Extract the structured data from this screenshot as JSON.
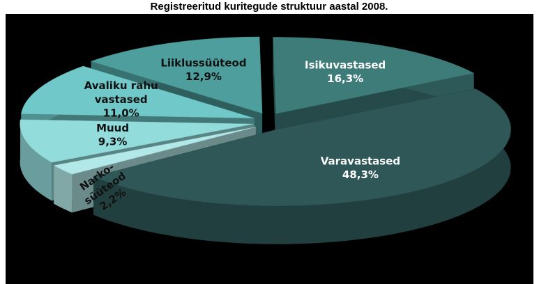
{
  "chart_data": {
    "type": "pie",
    "title": "Registreeritud kuritegude struktuur aastal 2008.",
    "categories": [
      "Varavastased",
      "Narko-süüteod",
      "Muud",
      "Avaliku rahu vastased",
      "Liiklussüüteod",
      "Isikuvastased"
    ],
    "values": [
      48.3,
      2.2,
      9.3,
      11.0,
      12.9,
      16.3
    ],
    "value_labels": [
      "48,3%",
      "2,2%",
      "9,3%",
      "11,0%",
      "12,9%",
      "16,3%"
    ],
    "colors": [
      "#2f5757",
      "#b3e8e8",
      "#93dcdc",
      "#70c8c8",
      "#4d9e9c",
      "#3e7c7a"
    ]
  }
}
